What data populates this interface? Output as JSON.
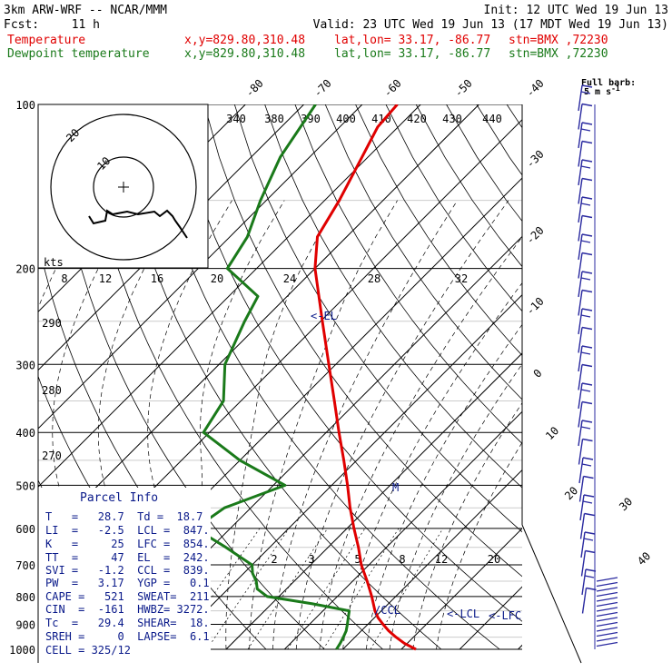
{
  "header": {
    "model": "3km ARW-WRF -- NCAR/MMM",
    "init": "Init: 12 UTC Wed 19 Jun 13",
    "fcst_label": "Fcst:",
    "fcst_value": "11 h",
    "valid": "Valid: 23 UTC Wed 19 Jun 13 (17 MDT Wed 19 Jun 13)",
    "line1_name": "Temperature",
    "line2_name": "Dewpoint temperature",
    "xy": "x,y=829.80,310.48",
    "latlon": "lat,lon= 33.17, -86.77",
    "stn": "stn=BMX ,72230"
  },
  "wind_key": {
    "line1": "Full barb:",
    "line2": "5 m s",
    "sup": "-1"
  },
  "colors": {
    "temperature": "#e00000",
    "dewpoint": "#1a7a1a",
    "annotations": "#0a1a8a",
    "barbs": "#2a2aa0"
  },
  "chart_data": {
    "type": "line",
    "diagram": "skew-T log-p",
    "yscale": "log",
    "ylim": [
      1000,
      100
    ],
    "pressure_ticks": [
      "100",
      "200",
      "300",
      "400",
      "500",
      "600",
      "700",
      "800",
      "900",
      "1000"
    ],
    "isotherm_labels": [
      "-80",
      "-70",
      "-60",
      "-50",
      "-40",
      "-30",
      "-20",
      "-10",
      "0",
      "10",
      "20",
      "30",
      "40"
    ],
    "isentrope_labels": [
      "340",
      "380",
      "390",
      "400",
      "410",
      "420",
      "430",
      "440",
      "290",
      "280",
      "270"
    ],
    "mixing_ratio_labels": [
      "2",
      "3",
      "5",
      "8",
      "12",
      "20"
    ],
    "series": [
      {
        "name": "Temperature",
        "p": [
          1000,
          975,
          950,
          925,
          900,
          875,
          850,
          800,
          750,
          700,
          650,
          600,
          550,
          500,
          450,
          400,
          350,
          300,
          250,
          200,
          175,
          150,
          125,
          110,
          100
        ],
        "t": [
          32.5,
          29.5,
          27.0,
          24.7,
          22.6,
          20.6,
          18.9,
          15.9,
          12.5,
          8.7,
          5.2,
          1.2,
          -3.0,
          -7.3,
          -12.2,
          -17.8,
          -24.0,
          -31.2,
          -39.7,
          -50.0,
          -55.0,
          -57.5,
          -61.0,
          -63.5,
          -64.0
        ]
      },
      {
        "name": "Dewpoint temperature",
        "p": [
          1000,
          975,
          950,
          925,
          900,
          875,
          850,
          825,
          800,
          775,
          750,
          725,
          700,
          650,
          600,
          550,
          500,
          450,
          400,
          350,
          300,
          250,
          225,
          200,
          175,
          150,
          125,
          100
        ],
        "t": [
          18.9,
          18.5,
          18.0,
          17.4,
          16.5,
          15.5,
          14.5,
          7.0,
          -2.0,
          -5.0,
          -6.5,
          -8.5,
          -10.0,
          -17.5,
          -26.0,
          -24.5,
          -18.0,
          -30.0,
          -41.0,
          -43.0,
          -49.0,
          -53.0,
          -55.0,
          -65.0,
          -67.0,
          -71.0,
          -75.0,
          -78.0
        ]
      }
    ],
    "annotations": [
      "<-EL",
      "M",
      "/CCL",
      "<-LCL",
      "<-LFC"
    ]
  },
  "hodograph": {
    "kts_label": "kts",
    "speed_ticks": [
      "8",
      "12",
      "16",
      "20",
      "24",
      "28",
      "32"
    ],
    "ring_labels": [
      "20",
      "10"
    ]
  },
  "parcel_info": {
    "title": "Parcel Info",
    "rows": [
      "T   =   28.7  Td =  18.7",
      "LI  =   -2.5  LCL =  847.",
      "K   =     25  LFC =  854.",
      "TT  =     47  EL  =  242.",
      "SVI =   -1.2  CCL =  839.",
      "PW  =   3.17  YGP =   0.1",
      "CAPE =   521  SWEAT=  211",
      "CIN  =  -161  HWBZ= 3272.",
      "Tc  =   29.4  SHEAR=  18.",
      "SREH =     0  LAPSE=  6.1",
      "CELL = 325/12"
    ]
  }
}
